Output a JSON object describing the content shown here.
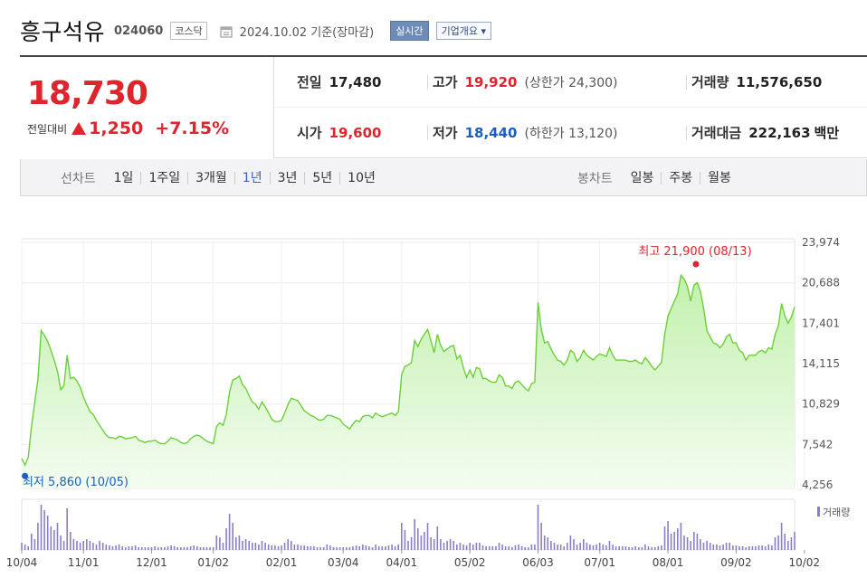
{
  "header": {
    "stock_name": "흥구석유",
    "stock_code": "024060",
    "market": "코스닥",
    "base_date": "2024.10.02 기준(장마감)",
    "live_button": "실시간",
    "company_button": "기업개요 ▾"
  },
  "quote": {
    "price": "18,730",
    "change_label": "전일대비",
    "change_amount": "1,250",
    "change_percent": "+7.15%",
    "prev_close_label": "전일",
    "prev_close": "17,480",
    "high_label": "고가",
    "high": "19,920",
    "upper_limit_label": "(상한가",
    "upper_limit": "24,300)",
    "volume_label": "거래량",
    "volume": "11,576,650",
    "open_label": "시가",
    "open": "19,600",
    "low_label": "저가",
    "low": "18,440",
    "lower_limit_label": "(하한가",
    "lower_limit": "13,120)",
    "amount_label": "거래대금",
    "amount": "222,163",
    "amount_unit": "백만"
  },
  "period_bar": {
    "line_chart_label": "선차트",
    "line_periods": [
      "1일",
      "1주일",
      "3개월",
      "1년",
      "3년",
      "5년",
      "10년"
    ],
    "active_index": 3,
    "candle_chart_label": "봉차트",
    "candle_periods": [
      "일봉",
      "주봉",
      "월봉"
    ]
  },
  "chart_data": {
    "type": "area",
    "y_ticks": [
      "23,974",
      "20,688",
      "17,401",
      "14,115",
      "10,829",
      "7,542",
      "4,256"
    ],
    "y_tick_values": [
      23974,
      20688,
      17401,
      14115,
      10829,
      7542,
      4256
    ],
    "ylim": [
      4256,
      23974
    ],
    "x_ticks": [
      "10/04",
      "11/01",
      "12/01",
      "01/02",
      "02/01",
      "03/04",
      "04/01",
      "05/02",
      "06/03",
      "07/01",
      "08/01",
      "09/02",
      "10/02"
    ],
    "x_tick_positions": [
      0,
      19,
      40,
      59,
      80,
      99,
      117,
      138,
      159,
      178,
      199,
      220,
      241
    ],
    "high_annotation": "최고 21,900 (08/13)",
    "low_annotation": "최저 5,860 (10/05)",
    "volume_label": "거래량",
    "prices": [
      6400,
      5860,
      6500,
      9000,
      11000,
      12800,
      16800,
      16400,
      15900,
      15200,
      14400,
      13500,
      12000,
      12300,
      14800,
      12900,
      13000,
      12700,
      12200,
      11400,
      10800,
      10200,
      10000,
      9500,
      9100,
      8700,
      8300,
      8100,
      8100,
      8000,
      8200,
      8150,
      8000,
      8050,
      8100,
      8200,
      7900,
      7800,
      7700,
      7800,
      7800,
      7900,
      7700,
      7600,
      7600,
      7800,
      8100,
      8000,
      7900,
      7700,
      7600,
      7700,
      8000,
      8200,
      8300,
      8200,
      8000,
      7800,
      7700,
      7600,
      9000,
      9300,
      9100,
      10000,
      11800,
      12800,
      12900,
      13100,
      12400,
      12100,
      11500,
      11000,
      10800,
      10400,
      11000,
      10600,
      10100,
      9600,
      9400,
      9400,
      9500,
      10100,
      10800,
      11300,
      11200,
      11100,
      10700,
      10300,
      10100,
      9900,
      9800,
      9600,
      9500,
      9600,
      9900,
      9900,
      9800,
      9700,
      9600,
      9200,
      9000,
      8800,
      9200,
      9500,
      9400,
      9800,
      9900,
      9900,
      9700,
      10100,
      9900,
      9800,
      9900,
      10000,
      10100,
      9900,
      10200,
      13200,
      13900,
      14000,
      14200,
      16000,
      15500,
      16100,
      16500,
      16900,
      16000,
      15000,
      16500,
      15600,
      15100,
      15300,
      15500,
      15600,
      14500,
      14800,
      13800,
      13000,
      13600,
      13000,
      13800,
      13700,
      12900,
      12900,
      12700,
      12600,
      12600,
      13200,
      13000,
      12300,
      12300,
      12100,
      12600,
      12700,
      12400,
      12100,
      11900,
      12500,
      12600,
      19100,
      16900,
      15800,
      15900,
      15300,
      14800,
      14400,
      14300,
      14000,
      14400,
      15200,
      15000,
      14300,
      14600,
      15200,
      14800,
      14600,
      14400,
      14700,
      14900,
      14800,
      14700,
      15400,
      14800,
      14400,
      14400,
      14400,
      14400,
      14300,
      14300,
      14400,
      14200,
      14100,
      14600,
      14300,
      13900,
      13600,
      13900,
      14200,
      16500,
      18000,
      18600,
      19200,
      19800,
      21300,
      21000,
      20400,
      19200,
      20500,
      20700,
      20000,
      18600,
      16800,
      16300,
      15800,
      15700,
      15400,
      15700,
      16300,
      16500,
      15800,
      15800,
      15200,
      15000,
      14400,
      14800,
      14800,
      14800,
      15100,
      15200,
      15000,
      15400,
      15300,
      16500,
      17200,
      19000,
      18000,
      17400,
      17900,
      18730
    ],
    "volumes": [
      8,
      6,
      4,
      18,
      12,
      30,
      50,
      44,
      38,
      26,
      22,
      30,
      16,
      10,
      46,
      20,
      12,
      10,
      8,
      10,
      12,
      10,
      8,
      6,
      10,
      8,
      6,
      5,
      4,
      5,
      6,
      4,
      3,
      4,
      4,
      5,
      3,
      3,
      3,
      3,
      3,
      4,
      3,
      3,
      3,
      4,
      5,
      4,
      3,
      3,
      3,
      3,
      4,
      5,
      4,
      3,
      3,
      3,
      3,
      3,
      16,
      14,
      8,
      24,
      40,
      30,
      14,
      16,
      10,
      12,
      10,
      8,
      8,
      6,
      10,
      8,
      6,
      5,
      5,
      4,
      5,
      8,
      12,
      10,
      6,
      6,
      5,
      5,
      4,
      4,
      4,
      3,
      3,
      3,
      6,
      5,
      3,
      3,
      3,
      3,
      3,
      3,
      4,
      5,
      4,
      6,
      5,
      4,
      3,
      6,
      4,
      4,
      4,
      5,
      6,
      4,
      6,
      30,
      22,
      10,
      14,
      34,
      24,
      16,
      20,
      30,
      14,
      12,
      26,
      12,
      8,
      10,
      12,
      10,
      6,
      8,
      6,
      5,
      8,
      6,
      8,
      8,
      5,
      4,
      4,
      4,
      4,
      8,
      6,
      4,
      4,
      3,
      5,
      6,
      4,
      3,
      3,
      6,
      6,
      50,
      30,
      16,
      14,
      10,
      8,
      6,
      6,
      4,
      8,
      16,
      12,
      6,
      8,
      12,
      8,
      6,
      5,
      6,
      8,
      6,
      5,
      10,
      6,
      4,
      4,
      4,
      4,
      3,
      3,
      4,
      3,
      3,
      6,
      4,
      3,
      3,
      4,
      5,
      26,
      32,
      18,
      20,
      24,
      30,
      16,
      14,
      10,
      20,
      18,
      12,
      8,
      10,
      8,
      6,
      6,
      5,
      6,
      8,
      8,
      5,
      5,
      4,
      4,
      3,
      4,
      4,
      4,
      5,
      5,
      4,
      6,
      5,
      14,
      16,
      30,
      18,
      10,
      14,
      20
    ]
  }
}
